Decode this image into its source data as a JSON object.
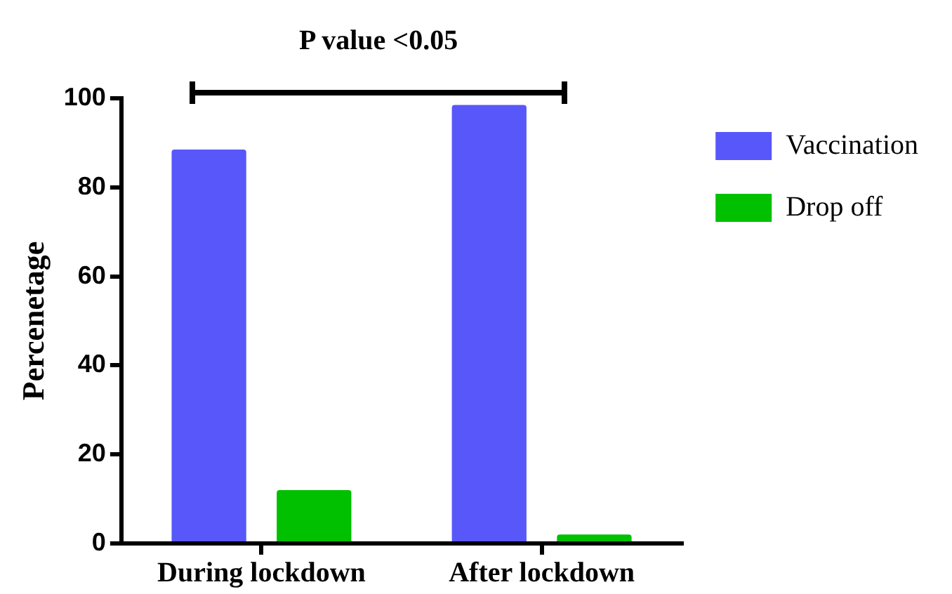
{
  "chart_data": {
    "type": "bar",
    "ylabel": "Percenetage",
    "categories": [
      "During lockdown",
      "After lockdown"
    ],
    "series": [
      {
        "name": "Vaccination",
        "color": "#5757fa",
        "values": [
          88.5,
          98.5
        ]
      },
      {
        "name": "Drop off",
        "color": "#00c000",
        "values": [
          12,
          2
        ]
      }
    ],
    "ylim": [
      0,
      100
    ],
    "yticks": [
      0,
      20,
      40,
      60,
      80,
      100
    ],
    "grid": false,
    "legend": "right",
    "annotations": [
      "P value <0.05"
    ]
  }
}
